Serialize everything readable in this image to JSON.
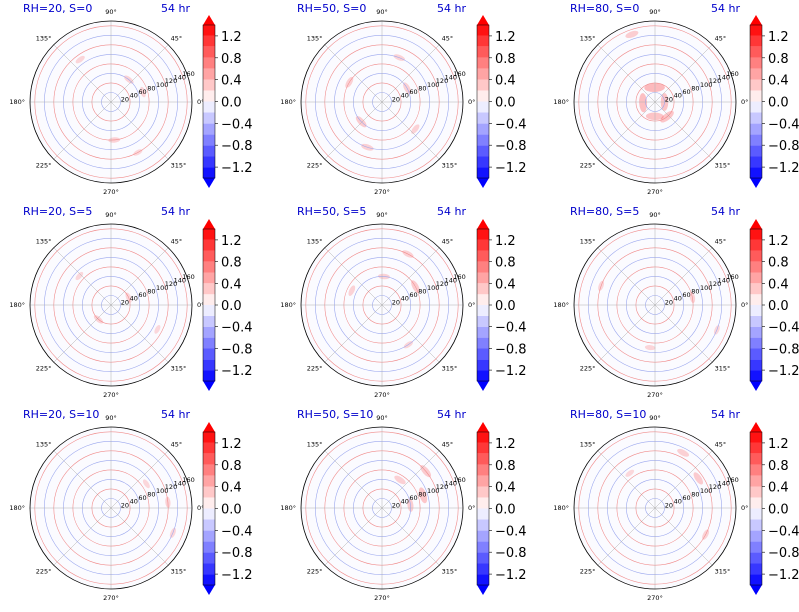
{
  "colors": {
    "positive": "#ff0000",
    "negative": "#0000ff",
    "title": "#0000cc",
    "radial_grid_positive": "#f08a8a",
    "radial_grid_negative": "#9aa6ee"
  },
  "colorbar": {
    "ticks": [
      "1.2",
      "0.8",
      "0.4",
      "0.0",
      "−0.4",
      "−0.8",
      "−1.2"
    ],
    "tick_values": [
      1.2,
      0.8,
      0.4,
      0.0,
      -0.4,
      -0.8,
      -1.2
    ],
    "range": [
      -1.4,
      1.4
    ],
    "levels": 14,
    "extend": "both",
    "colormap": "bwr"
  },
  "chart_data": {
    "type": "polar-contour-grid",
    "time_label": "54 hr",
    "radial_ticks": [
      "20",
      "40",
      "60",
      "80",
      "100",
      "120",
      "140",
      "160"
    ],
    "radial_values": [
      20,
      40,
      60,
      80,
      100,
      120,
      140,
      160
    ],
    "r_max": 170,
    "angle_labels": [
      "0°",
      "45°",
      "90°",
      "135°",
      "180°",
      "225°",
      "270°",
      "315°"
    ],
    "angle_values": [
      0,
      45,
      90,
      135,
      180,
      225,
      270,
      315
    ],
    "panels": [
      {
        "title": "RH=20, S=0",
        "rh": 20,
        "s": 0,
        "blobs": [
          [
            0.3,
            70,
            0.1
          ],
          [
            0.9,
            60,
            0.12
          ],
          [
            2.2,
            110,
            0.1
          ],
          [
            4.8,
            80,
            0.14
          ],
          [
            5.2,
            120,
            0.08
          ]
        ]
      },
      {
        "title": "RH=50, S=0",
        "rh": 50,
        "s": 0,
        "blobs": [
          [
            0.5,
            60,
            0.18
          ],
          [
            1.2,
            100,
            0.14
          ],
          [
            2.6,
            80,
            0.16
          ],
          [
            3.9,
            60,
            0.22
          ],
          [
            4.4,
            100,
            0.18
          ],
          [
            5.6,
            90,
            0.12
          ]
        ]
      },
      {
        "title": "RH=80, S=0",
        "rh": 80,
        "s": 0,
        "blobs": [
          [
            0.0,
            20,
            0.35
          ],
          [
            1.6,
            30,
            0.45
          ],
          [
            3.2,
            25,
            0.4
          ],
          [
            4.7,
            30,
            0.35
          ],
          [
            1.9,
            150,
            0.2
          ],
          [
            5.4,
            40,
            0.3
          ]
        ]
      },
      {
        "title": "RH=20, S=5",
        "rh": 20,
        "s": 5,
        "blobs": [
          [
            0.4,
            40,
            0.1
          ],
          [
            2.4,
            90,
            0.08
          ],
          [
            4.0,
            40,
            0.12
          ],
          [
            5.8,
            110,
            0.06
          ]
        ]
      },
      {
        "title": "RH=50, S=5",
        "rh": 50,
        "s": 5,
        "blobs": [
          [
            0.5,
            80,
            0.22
          ],
          [
            1.1,
            120,
            0.16
          ],
          [
            1.5,
            60,
            0.14
          ],
          [
            2.7,
            70,
            0.12
          ],
          [
            5.3,
            100,
            0.1
          ]
        ]
      },
      {
        "title": "RH=80, S=5",
        "rh": 80,
        "s": 5,
        "blobs": [
          [
            0.2,
            80,
            0.12
          ],
          [
            2.8,
            120,
            0.1
          ],
          [
            4.6,
            90,
            0.1
          ],
          [
            5.9,
            140,
            0.08
          ]
        ]
      },
      {
        "title": "RH=20, S=10",
        "rh": 20,
        "s": 10,
        "blobs": [
          [
            0.1,
            120,
            0.12
          ],
          [
            5.9,
            140,
            0.1
          ],
          [
            0.6,
            90,
            0.08
          ]
        ]
      },
      {
        "title": "RH=50, S=10",
        "rh": 50,
        "s": 10,
        "blobs": [
          [
            0.3,
            90,
            0.3
          ],
          [
            0.7,
            120,
            0.24
          ],
          [
            1.0,
            70,
            0.18
          ],
          [
            0.1,
            60,
            0.2
          ]
        ]
      },
      {
        "title": "RH=80, S=10",
        "rh": 80,
        "s": 10,
        "blobs": [
          [
            0.6,
            110,
            0.22
          ],
          [
            1.1,
            130,
            0.18
          ],
          [
            5.8,
            120,
            0.12
          ],
          [
            2.2,
            90,
            0.08
          ]
        ]
      }
    ]
  }
}
